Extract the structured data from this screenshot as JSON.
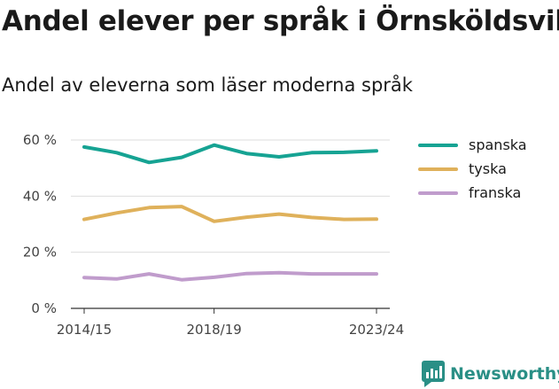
{
  "header": {
    "title": "Andel elever per språk i Örnsköldsvik",
    "subtitle": "Andel av eleverna som läser moderna språk"
  },
  "brand": {
    "name": "Newsworthy",
    "icon": "newsworthy-logo-icon",
    "color": "#2a8f86"
  },
  "chart_data": {
    "type": "line",
    "title": "Andel elever per språk i Örnsköldsvik",
    "subtitle": "Andel av eleverna som läser moderna språk",
    "x": [
      "2014/15",
      "2015/16",
      "2016/17",
      "2017/18",
      "2018/19",
      "2019/20",
      "2020/21",
      "2021/22",
      "2022/23",
      "2023/24"
    ],
    "x_tick_labels": [
      "2014/15",
      "2018/19",
      "2023/24"
    ],
    "y_ticks": [
      0,
      20,
      40,
      60
    ],
    "y_tick_labels": [
      "0 %",
      "20 %",
      "40 %",
      "60 %"
    ],
    "ylim": [
      0,
      60
    ],
    "grid": true,
    "legend_position": "right",
    "series": [
      {
        "name": "spanska",
        "color": "#16a393",
        "values": [
          57.5,
          55.5,
          52,
          53.8,
          58.2,
          55.2,
          54,
          55.5,
          55.6,
          56.1
        ]
      },
      {
        "name": "tyska",
        "color": "#dfb15b",
        "values": [
          31.7,
          34,
          35.9,
          36.3,
          31,
          32.5,
          33.6,
          32.4,
          31.7,
          31.8
        ]
      },
      {
        "name": "franska",
        "color": "#c09ccc",
        "values": [
          11,
          10.5,
          12.3,
          10.2,
          11.1,
          12.4,
          12.7,
          12.3,
          12.3,
          12.3
        ]
      }
    ]
  }
}
